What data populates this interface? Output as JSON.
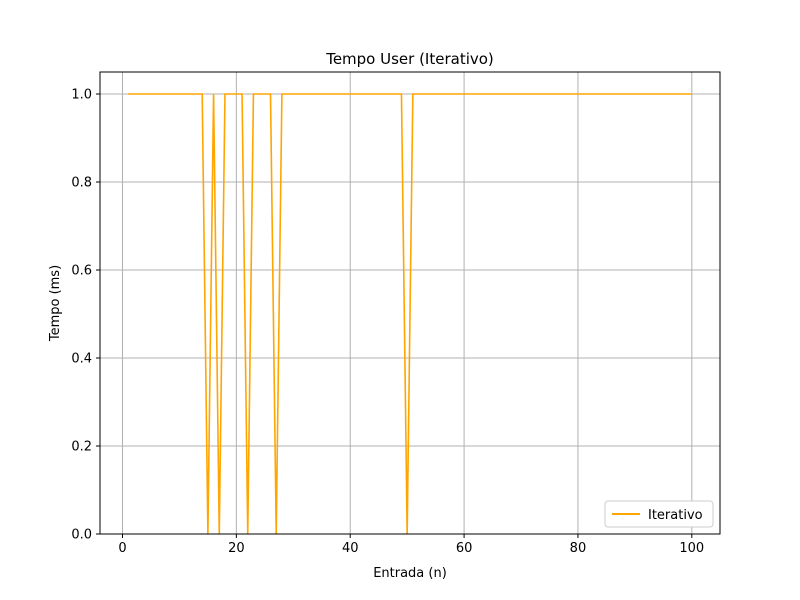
{
  "chart_data": {
    "type": "line",
    "title": "Tempo User (Iterativo)",
    "xlabel": "Entrada (n)",
    "ylabel": "Tempo (ms)",
    "xlim": [
      -3.95,
      104.95
    ],
    "ylim": [
      0,
      1.05
    ],
    "xticks": [
      0,
      20,
      40,
      60,
      80,
      100
    ],
    "yticks": [
      0.0,
      0.2,
      0.4,
      0.6,
      0.8,
      1.0
    ],
    "xtick_labels": [
      "0",
      "20",
      "40",
      "60",
      "80",
      "100"
    ],
    "ytick_labels": [
      "0.0",
      "0.2",
      "0.4",
      "0.6",
      "0.8",
      "1.0"
    ],
    "grid": true,
    "legend_position": "lower-right",
    "series": [
      {
        "name": "Iterativo",
        "color": "#ffa500",
        "x": [
          1,
          2,
          3,
          4,
          5,
          6,
          7,
          8,
          9,
          10,
          11,
          12,
          13,
          14,
          15,
          16,
          17,
          18,
          19,
          20,
          21,
          22,
          23,
          24,
          25,
          26,
          27,
          28,
          29,
          30,
          31,
          32,
          33,
          34,
          35,
          36,
          37,
          38,
          39,
          40,
          41,
          42,
          43,
          44,
          45,
          46,
          47,
          48,
          49,
          50,
          51,
          52,
          53,
          54,
          55,
          56,
          57,
          58,
          59,
          60,
          61,
          62,
          63,
          64,
          65,
          66,
          67,
          68,
          69,
          70,
          71,
          72,
          73,
          74,
          75,
          76,
          77,
          78,
          79,
          80,
          81,
          82,
          83,
          84,
          85,
          86,
          87,
          88,
          89,
          90,
          91,
          92,
          93,
          94,
          95,
          96,
          97,
          98,
          99,
          100
        ],
        "y": [
          1,
          1,
          1,
          1,
          1,
          1,
          1,
          1,
          1,
          1,
          1,
          1,
          1,
          1,
          0,
          1,
          0,
          1,
          1,
          1,
          1,
          0,
          1,
          1,
          1,
          1,
          0,
          1,
          1,
          1,
          1,
          1,
          1,
          1,
          1,
          1,
          1,
          1,
          1,
          1,
          1,
          1,
          1,
          1,
          1,
          1,
          1,
          1,
          1,
          0,
          1,
          1,
          1,
          1,
          1,
          1,
          1,
          1,
          1,
          1,
          1,
          1,
          1,
          1,
          1,
          1,
          1,
          1,
          1,
          1,
          1,
          1,
          1,
          1,
          1,
          1,
          1,
          1,
          1,
          1,
          1,
          1,
          1,
          1,
          1,
          1,
          1,
          1,
          1,
          1,
          1,
          1,
          1,
          1,
          1,
          1,
          1,
          1,
          1,
          1
        ]
      }
    ]
  }
}
